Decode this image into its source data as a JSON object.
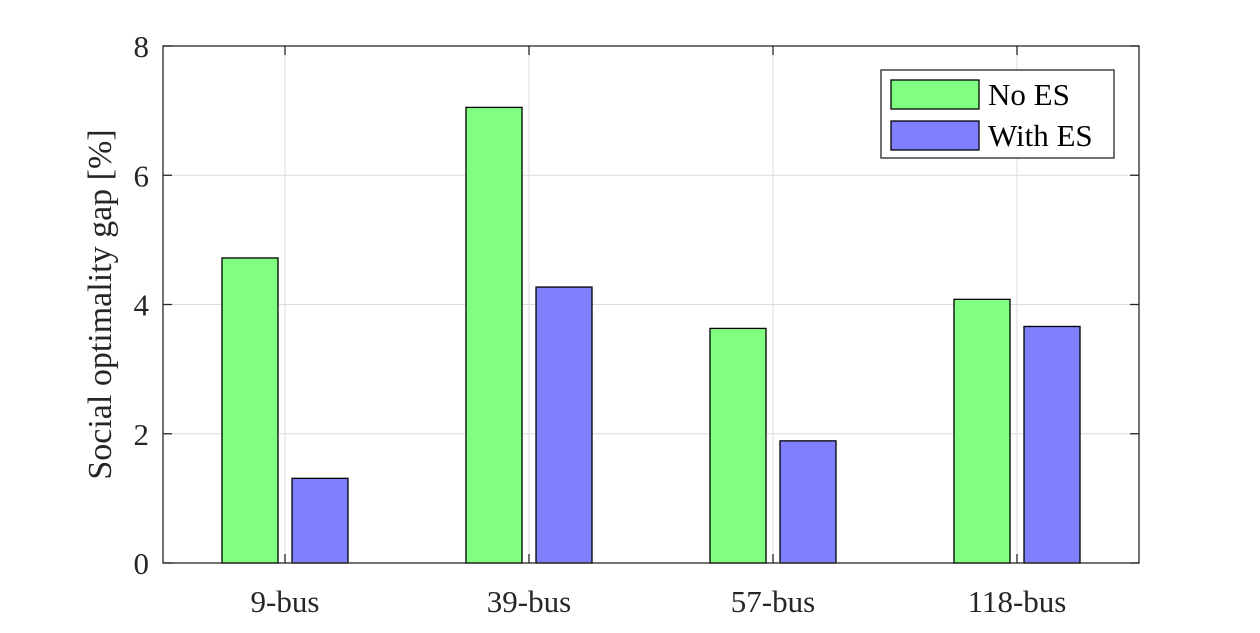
{
  "chart_data": {
    "type": "bar",
    "title": "",
    "xlabel": "",
    "ylabel": "Social optimality gap [%]",
    "categories": [
      "9-bus",
      "39-bus",
      "57-bus",
      "118-bus"
    ],
    "series": [
      {
        "name": "No ES",
        "values": [
          4.72,
          7.05,
          3.63,
          4.08
        ],
        "color": "#80ff80"
      },
      {
        "name": "With ES",
        "values": [
          1.31,
          4.27,
          1.89,
          3.66
        ],
        "color": "#8080ff"
      }
    ],
    "ylim": [
      0,
      8
    ],
    "yticks": [
      "0",
      "2",
      "4",
      "6",
      "8"
    ],
    "grid": true,
    "legend_position": "top-right",
    "edge_color": "#000000"
  }
}
